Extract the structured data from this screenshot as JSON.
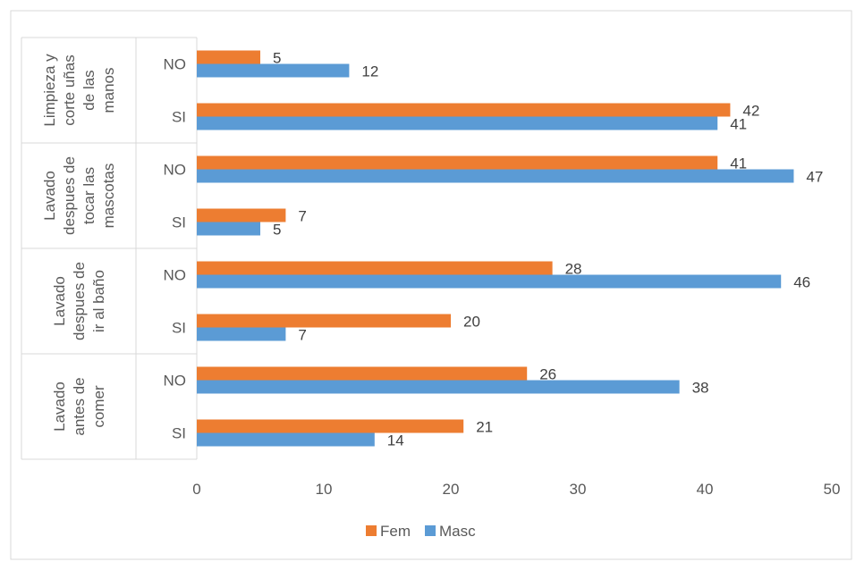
{
  "chart_data": {
    "type": "bar",
    "orientation": "horizontal",
    "groups": [
      {
        "label_lines": [
          "Limpieza y",
          "corte uñas",
          "de las",
          "manos"
        ],
        "categories": [
          "NO",
          "SI"
        ]
      },
      {
        "label_lines": [
          "Lavado",
          "despues de",
          "tocar las",
          "mascotas"
        ],
        "categories": [
          "NO",
          "SI"
        ]
      },
      {
        "label_lines": [
          "Lavado",
          "despues de",
          "ir al baño"
        ],
        "categories": [
          "NO",
          "SI"
        ]
      },
      {
        "label_lines": [
          "Lavado",
          "antes de",
          "comer"
        ],
        "categories": [
          "NO",
          "SI"
        ]
      }
    ],
    "series": [
      {
        "name": "Fem",
        "color": "#ED7D31",
        "values": [
          5,
          42,
          41,
          7,
          28,
          20,
          26,
          21
        ]
      },
      {
        "name": "Masc",
        "color": "#5B9BD5",
        "values": [
          12,
          41,
          47,
          5,
          46,
          7,
          38,
          14
        ]
      }
    ],
    "xlim": [
      0,
      50
    ],
    "xticks": [
      "0",
      "10",
      "20",
      "30",
      "40",
      "50"
    ],
    "grid": false,
    "legend_position": "bottom"
  }
}
